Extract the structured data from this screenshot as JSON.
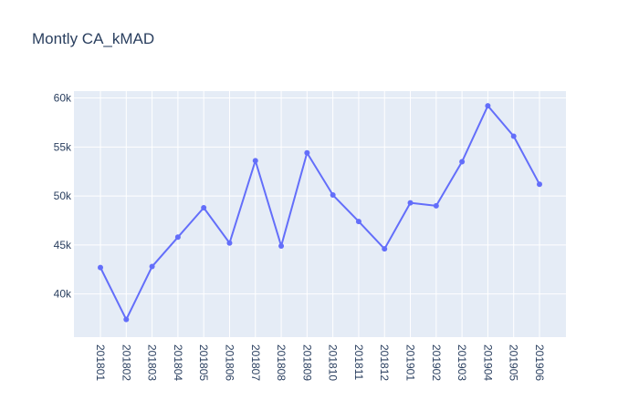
{
  "chart_data": {
    "type": "line",
    "title": "Montly CA_kMAD",
    "xlabel": "",
    "ylabel": "",
    "categories": [
      "201801",
      "201802",
      "201803",
      "201804",
      "201805",
      "201806",
      "201807",
      "201808",
      "201809",
      "201810",
      "201811",
      "201812",
      "201901",
      "201902",
      "201903",
      "201904",
      "201905",
      "201906"
    ],
    "series": [
      {
        "values": [
          42700,
          37400,
          42800,
          45800,
          48800,
          45200,
          53600,
          44900,
          54400,
          50100,
          47400,
          44600,
          49300,
          49000,
          53500,
          59200,
          56100,
          51200
        ]
      }
    ],
    "ylim": [
      35600,
      60700
    ],
    "yticks": [
      40000,
      45000,
      50000,
      55000,
      60000
    ],
    "ytick_labels": [
      "40k",
      "45k",
      "50k",
      "55k",
      "60k"
    ],
    "grid": true,
    "legend": "none",
    "colors": {
      "line": "#636efa",
      "plot_bg": "#e5ecf6",
      "grid": "#ffffff",
      "text": "#2a3f5f"
    }
  }
}
